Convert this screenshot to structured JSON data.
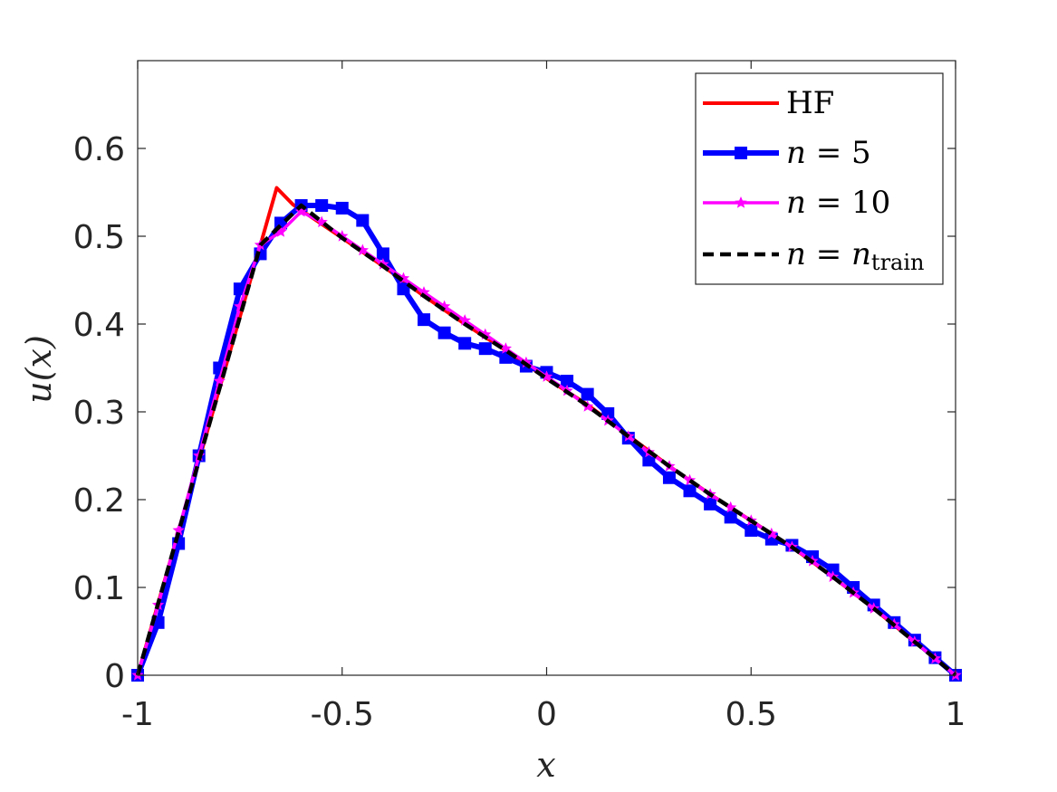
{
  "chart_data": {
    "type": "line",
    "title": "",
    "xlabel": "x",
    "ylabel": "u(x)",
    "xlim": [
      -1,
      1
    ],
    "ylim": [
      0,
      0.7
    ],
    "xticks": [
      -1,
      -0.5,
      0,
      0.5,
      1
    ],
    "xtick_labels": [
      "-1",
      "-0.5",
      "0",
      "0.5",
      "1"
    ],
    "yticks": [
      0,
      0.1,
      0.2,
      0.3,
      0.4,
      0.5,
      0.6
    ],
    "ytick_labels": [
      "0",
      "0.1",
      "0.2",
      "0.3",
      "0.4",
      "0.5",
      "0.6"
    ],
    "grid": false,
    "legend_position": "top-right",
    "series": [
      {
        "name": "HF",
        "color": "#ff0000",
        "style": "solid",
        "marker": "none",
        "x": [
          -1,
          -0.7,
          -0.66,
          -0.62,
          -0.5,
          -0.4,
          -0.3,
          -0.2,
          -0.1,
          0,
          0.1,
          0.2,
          0.3,
          0.4,
          0.5,
          0.6,
          0.7,
          0.8,
          0.9,
          1
        ],
        "y": [
          0,
          0.49,
          0.555,
          0.536,
          0.498,
          0.466,
          0.432,
          0.4,
          0.37,
          0.338,
          0.308,
          0.273,
          0.238,
          0.206,
          0.176,
          0.146,
          0.112,
          0.076,
          0.038,
          0
        ]
      },
      {
        "name": "n = 5",
        "color": "#0000ff",
        "style": "solid",
        "marker": "square",
        "x": [
          -1,
          -0.95,
          -0.9,
          -0.85,
          -0.8,
          -0.75,
          -0.7,
          -0.65,
          -0.6,
          -0.55,
          -0.5,
          -0.45,
          -0.4,
          -0.35,
          -0.3,
          -0.25,
          -0.2,
          -0.15,
          -0.1,
          -0.05,
          0,
          0.05,
          0.1,
          0.15,
          0.2,
          0.25,
          0.3,
          0.35,
          0.4,
          0.45,
          0.5,
          0.55,
          0.6,
          0.65,
          0.7,
          0.75,
          0.8,
          0.85,
          0.9,
          0.95,
          1
        ],
        "y": [
          0,
          0.06,
          0.15,
          0.25,
          0.35,
          0.44,
          0.48,
          0.515,
          0.535,
          0.535,
          0.532,
          0.518,
          0.48,
          0.44,
          0.405,
          0.39,
          0.378,
          0.372,
          0.362,
          0.352,
          0.345,
          0.335,
          0.32,
          0.298,
          0.27,
          0.245,
          0.225,
          0.21,
          0.195,
          0.18,
          0.165,
          0.155,
          0.148,
          0.135,
          0.12,
          0.1,
          0.08,
          0.06,
          0.04,
          0.02,
          0
        ]
      },
      {
        "name": "n = 10",
        "color": "#ff00ff",
        "style": "solid",
        "marker": "star",
        "x": [
          -1,
          -0.95,
          -0.9,
          -0.85,
          -0.8,
          -0.75,
          -0.7,
          -0.65,
          -0.6,
          -0.55,
          -0.5,
          -0.45,
          -0.4,
          -0.35,
          -0.3,
          -0.25,
          -0.2,
          -0.15,
          -0.1,
          -0.05,
          0,
          0.05,
          0.1,
          0.15,
          0.2,
          0.25,
          0.3,
          0.35,
          0.4,
          0.45,
          0.5,
          0.55,
          0.6,
          0.65,
          0.7,
          0.75,
          0.8,
          0.85,
          0.9,
          0.95,
          1
        ],
        "y": [
          0,
          0.08,
          0.165,
          0.25,
          0.335,
          0.42,
          0.49,
          0.505,
          0.528,
          0.516,
          0.5,
          0.484,
          0.468,
          0.452,
          0.436,
          0.42,
          0.404,
          0.388,
          0.372,
          0.356,
          0.34,
          0.324,
          0.306,
          0.29,
          0.272,
          0.254,
          0.238,
          0.222,
          0.206,
          0.191,
          0.176,
          0.161,
          0.146,
          0.13,
          0.112,
          0.094,
          0.076,
          0.058,
          0.038,
          0.019,
          0
        ]
      },
      {
        "name": "n = n_train",
        "color": "#000000",
        "style": "dashed",
        "marker": "none",
        "x": [
          -1,
          -0.7,
          -0.6,
          -0.5,
          -0.4,
          -0.3,
          -0.2,
          -0.1,
          0,
          0.1,
          0.2,
          0.3,
          0.4,
          0.5,
          0.6,
          0.7,
          0.8,
          0.9,
          1
        ],
        "y": [
          0,
          0.49,
          0.535,
          0.498,
          0.466,
          0.432,
          0.4,
          0.37,
          0.338,
          0.307,
          0.272,
          0.238,
          0.206,
          0.176,
          0.146,
          0.112,
          0.076,
          0.038,
          0
        ]
      }
    ]
  }
}
